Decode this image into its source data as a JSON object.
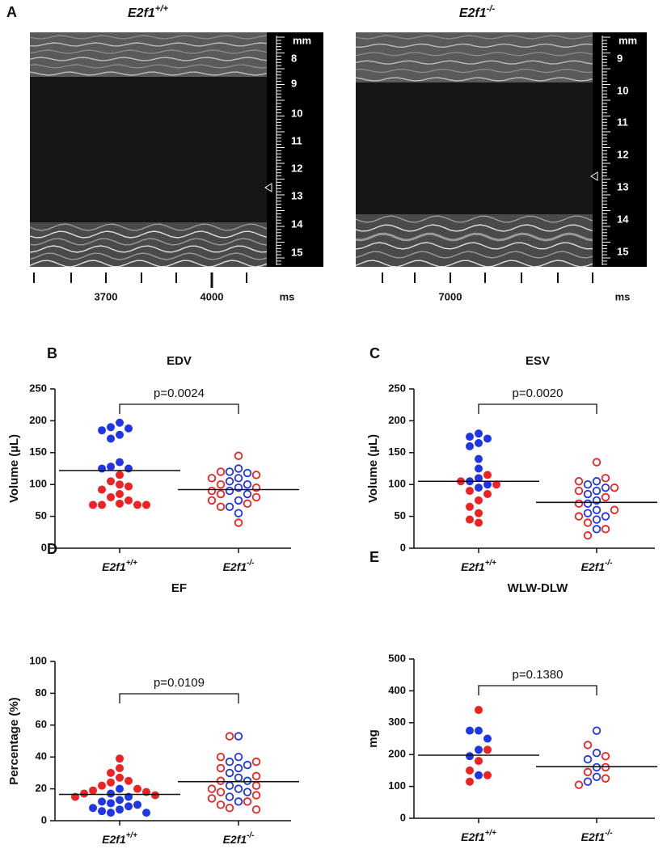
{
  "panel_a": {
    "label": "A",
    "images": [
      {
        "title": "E2f1+/+",
        "scale_unit": "mm",
        "scale_labels": [
          8,
          9,
          10,
          11,
          12,
          13,
          14,
          15
        ],
        "time_labels": [
          3700,
          4000
        ],
        "time_unit": "ms"
      },
      {
        "title": "E2f1-/-",
        "scale_unit": "mm",
        "scale_labels": [
          9,
          10,
          11,
          12,
          13,
          14,
          15
        ],
        "time_labels": [
          7000
        ],
        "time_unit": "ms"
      }
    ]
  },
  "chart_data": [
    {
      "type": "scatter",
      "label": "B",
      "title": "EDV",
      "ylabel": "Volume (µL)",
      "categories": [
        "E2f1+/+",
        "E2f1-/-"
      ],
      "filled": [
        true,
        false
      ],
      "ylim": [
        0,
        250
      ],
      "yticks": [
        0,
        50,
        100,
        150,
        200,
        250
      ],
      "annotation": "p=0.0024",
      "means": [
        122,
        92
      ],
      "series": [
        {
          "color": "#1f35e8",
          "values": [
            [
              197,
              190,
              188,
              185,
              178,
              172,
              135,
              128,
              125,
              125
            ],
            [
              125,
              120,
              118,
              110,
              105,
              100,
              95,
              90,
              85,
              75,
              65,
              55
            ]
          ]
        },
        {
          "color": "#ee2222",
          "values": [
            [
              115,
              105,
              100,
              97,
              92,
              85,
              80,
              75,
              70,
              68,
              68,
              68,
              68
            ],
            [
              145,
              120,
              115,
              110,
              100,
              95,
              90,
              85,
              80,
              75,
              70,
              65,
              40
            ]
          ]
        }
      ]
    },
    {
      "type": "scatter",
      "label": "C",
      "title": "ESV",
      "ylabel": "Volume (µL)",
      "categories": [
        "E2f1+/+",
        "E2f1-/-"
      ],
      "filled": [
        true,
        false
      ],
      "ylim": [
        0,
        250
      ],
      "yticks": [
        0,
        50,
        100,
        150,
        200,
        250
      ],
      "annotation": "p=0.0020",
      "means": [
        105,
        72
      ],
      "series": [
        {
          "color": "#1f35e8",
          "values": [
            [
              180,
              175,
              172,
              165,
              160,
              140,
              125,
              110,
              105,
              100,
              95
            ],
            [
              105,
              100,
              95,
              90,
              85,
              75,
              70,
              60,
              55,
              50,
              45,
              30
            ]
          ]
        },
        {
          "color": "#ee2222",
          "values": [
            [
              115,
              105,
              100,
              90,
              85,
              75,
              65,
              55,
              45,
              40
            ],
            [
              135,
              110,
              105,
              95,
              90,
              80,
              70,
              60,
              50,
              40,
              30,
              20
            ]
          ]
        }
      ]
    },
    {
      "type": "scatter",
      "label": "D",
      "title": "EF",
      "ylabel": "Percentage (%)",
      "categories": [
        "E2f1+/+",
        "E2f1-/-"
      ],
      "filled": [
        true,
        false
      ],
      "ylim": [
        0,
        100
      ],
      "yticks": [
        0,
        20,
        40,
        60,
        80,
        100
      ],
      "annotation": "p=0.0109",
      "means": [
        16.5,
        24.5
      ],
      "series": [
        {
          "color": "#1f35e8",
          "values": [
            [
              20,
              17,
              15,
              13,
              12,
              11,
              10,
              9,
              8,
              7,
              6,
              5,
              5
            ],
            [
              53,
              40,
              37,
              35,
              33,
              30,
              27,
              25,
              22,
              20,
              18,
              15,
              12
            ]
          ]
        },
        {
          "color": "#ee2222",
          "values": [
            [
              39,
              33,
              30,
              27,
              25,
              24,
              22,
              20,
              19,
              18,
              17,
              16,
              15
            ],
            [
              53,
              40,
              37,
              33,
              28,
              25,
              22,
              20,
              18,
              16,
              14,
              12,
              10,
              8,
              7
            ]
          ]
        }
      ]
    },
    {
      "type": "scatter",
      "label": "E",
      "title": "WLW-DLW",
      "ylabel": "mg",
      "categories": [
        "E2f1+/+",
        "E2f1-/-"
      ],
      "filled": [
        true,
        false
      ],
      "ylim": [
        0,
        500
      ],
      "yticks": [
        0,
        100,
        200,
        300,
        400,
        500
      ],
      "annotation": "p=0.1380",
      "means": [
        198,
        162
      ],
      "series": [
        {
          "color": "#1f35e8",
          "values": [
            [
              275,
              275,
              250,
              215,
              195,
              135
            ],
            [
              275,
              205,
              185,
              160,
              130,
              115
            ]
          ]
        },
        {
          "color": "#ee2222",
          "values": [
            [
              340,
              215,
              180,
              150,
              135,
              115
            ],
            [
              230,
              195,
              160,
              145,
              125,
              105
            ]
          ]
        }
      ]
    }
  ]
}
